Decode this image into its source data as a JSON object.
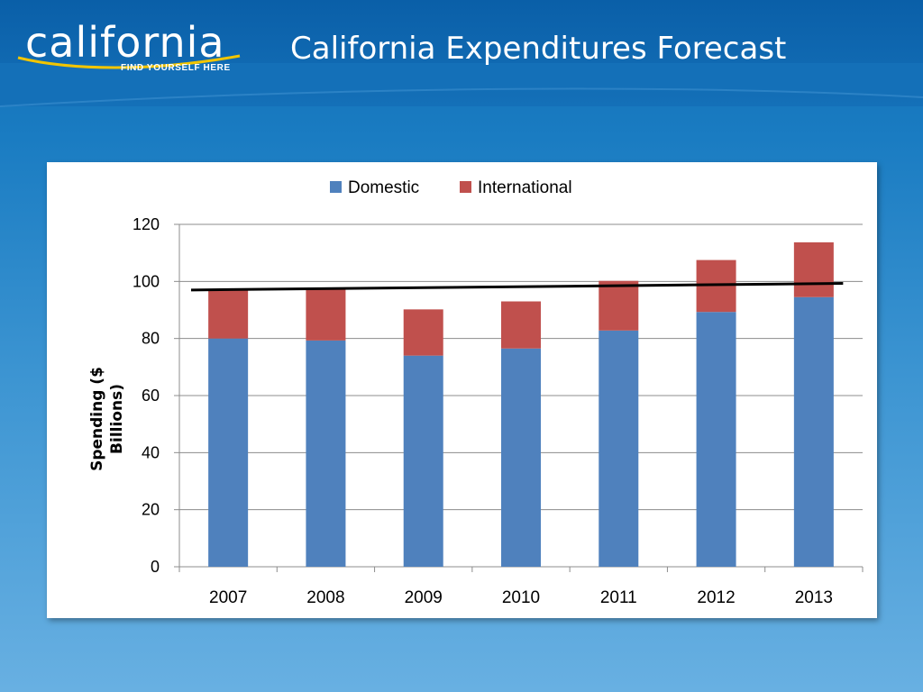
{
  "logo": {
    "word": "california",
    "tagline": "FIND YOURSELF HERE"
  },
  "title": "California Expenditures Forecast",
  "colors": {
    "domestic": "#4f81bd",
    "international": "#c0504d",
    "trend": "#000000",
    "logo_swoosh": "#f2c500"
  },
  "chart_data": {
    "type": "bar",
    "stacked": true,
    "categories": [
      "2007",
      "2008",
      "2009",
      "2010",
      "2011",
      "2012",
      "2013"
    ],
    "series": [
      {
        "name": "Domestic",
        "values": [
          80,
          79.3,
          74,
          76.5,
          82.8,
          89.3,
          94.5
        ]
      },
      {
        "name": "International",
        "values": [
          17,
          18.2,
          16.2,
          16.5,
          17.4,
          18.2,
          19.2
        ]
      }
    ],
    "trendline": {
      "type": "linear",
      "start": 97,
      "end": 99.3
    },
    "title": "",
    "xlabel": "",
    "ylabel": "Spending ($ Billions)",
    "ylim": [
      0,
      120
    ],
    "yticks": [
      0,
      20,
      40,
      60,
      80,
      100,
      120
    ],
    "grid": true,
    "legend_position": "top-center"
  }
}
